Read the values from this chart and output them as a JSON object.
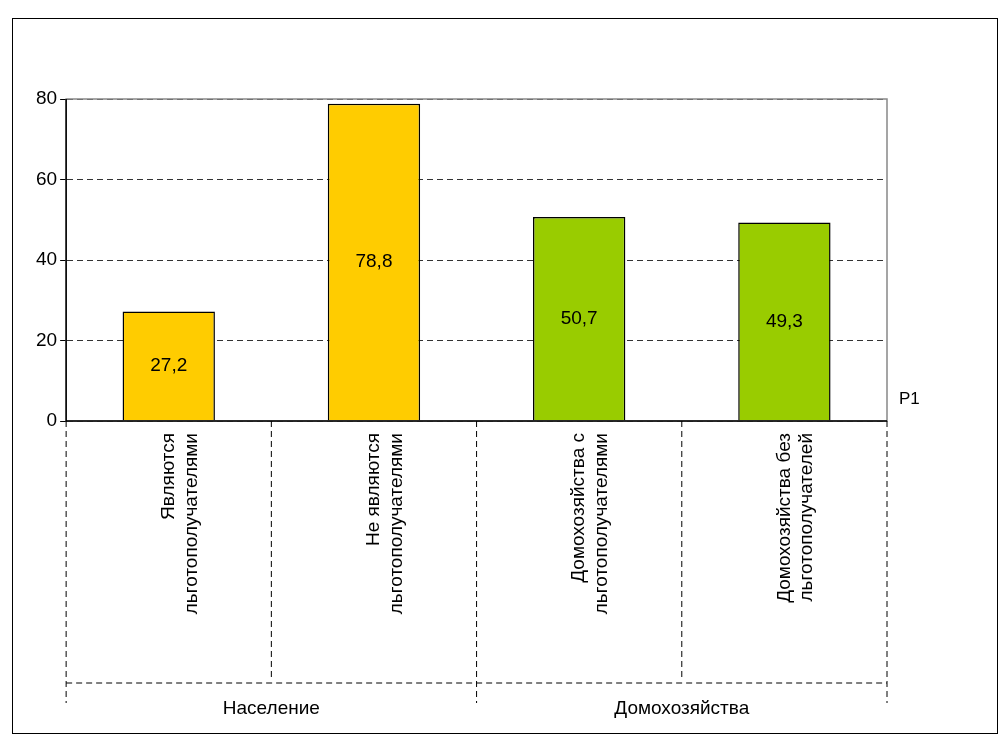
{
  "chart_data": {
    "type": "bar",
    "categories": [
      "Являются льготополучателями",
      "Не являются льготополучателями",
      "Домохозяйства с льготополучателями",
      "Домохозяйства без льготополучателей"
    ],
    "series": [
      {
        "name": "P1",
        "colors": [
          "#ffcc00",
          "#ffcc00",
          "#99cc00",
          "#99cc00"
        ],
        "values": [
          27.2,
          78.8,
          50.7,
          49.3
        ],
        "value_labels": [
          "27,2",
          "78,8",
          "50,7",
          "49,3"
        ]
      }
    ],
    "annotations": [
      "Население",
      "Домохозяйства"
    ],
    "ylim": [
      0,
      80
    ],
    "yticks": [
      0,
      20,
      40,
      60,
      80
    ],
    "grid": "y",
    "line_style": "dashed",
    "legend": false
  }
}
